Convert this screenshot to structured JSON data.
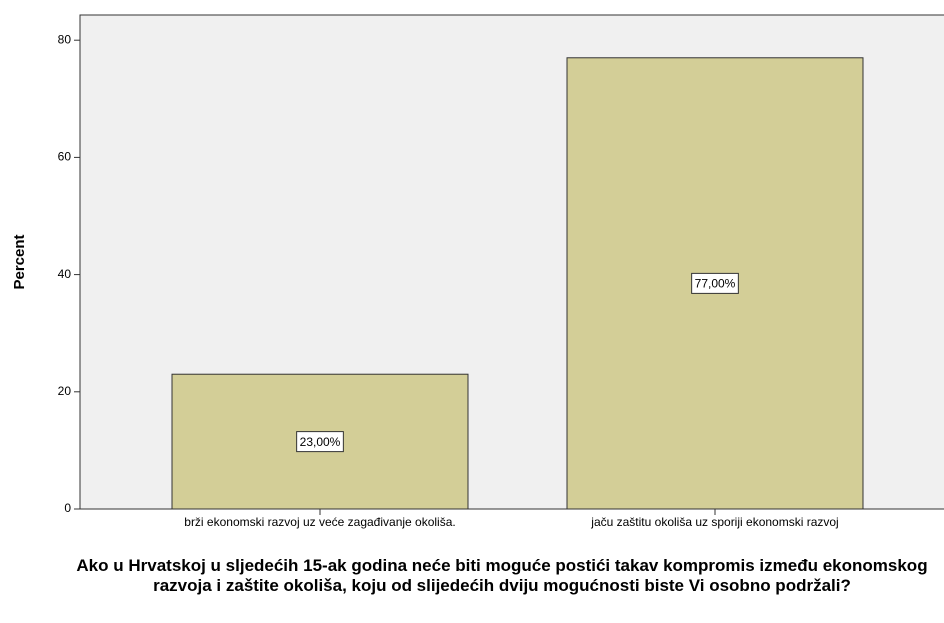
{
  "chart_data": {
    "type": "bar",
    "ylabel": "Percent",
    "xlabel": "Ako u Hrvatskoj u sljedećih 15-ak godina neće biti moguće postići takav kompromis između ekonomskog razvoja i zaštite okoliša, koju od slijedećih dviju mogućnosti biste Vi osobno podržali?",
    "categories": [
      "brži ekonomski razvoj uz veće zagađivanje okoliša.",
      "jaču zaštitu okoliša uz sporiji ekonomski razvoj"
    ],
    "values": [
      23,
      77
    ],
    "value_labels": [
      "23,00%",
      "77,00%"
    ],
    "color": "#d3ce97",
    "ylim": [
      0,
      84.3
    ],
    "yticks": [
      0,
      20,
      40,
      60,
      80
    ]
  }
}
